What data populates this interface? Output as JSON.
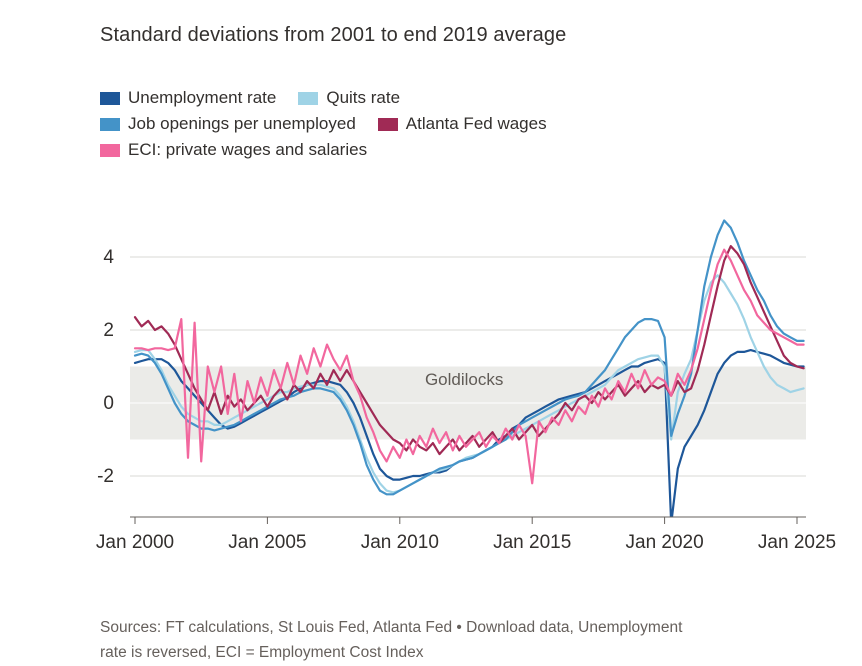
{
  "title": "Standard deviations from 2001 to end 2019 average",
  "legend": {
    "items": [
      {
        "label": "Unemployment rate",
        "color": "#1e5799"
      },
      {
        "label": "Quits rate",
        "color": "#9fd3e6"
      },
      {
        "label": "Job openings per unemployed",
        "color": "#4493c8"
      },
      {
        "label": "Atlanta Fed wages",
        "color": "#a02a55"
      },
      {
        "label": "ECI: private wages and salaries",
        "color": "#f2679e"
      }
    ]
  },
  "source": {
    "line1": "Sources: FT calculations, St Louis Fed, Atlanta Fed • Download data, Unemployment",
    "line2": "rate is reversed, ECI = Employment Cost Index"
  },
  "chart_data": {
    "type": "line",
    "title": "Standard deviations from 2001 to end 2019 average",
    "xlabel": "",
    "ylabel": "Standard deviations",
    "x_start": 2000.0,
    "x_step": 0.25,
    "xlim": [
      2000,
      2025.5
    ],
    "ylim": [
      -3.1,
      5.4
    ],
    "y_ticks": [
      -2,
      0,
      2,
      4
    ],
    "x_ticks": [
      {
        "value": 2000,
        "label": "Jan 2000"
      },
      {
        "value": 2005,
        "label": "Jan 2005"
      },
      {
        "value": 2010,
        "label": "Jan 2010"
      },
      {
        "value": 2015,
        "label": "Jan 2015"
      },
      {
        "value": 2020,
        "label": "Jan 2020"
      },
      {
        "value": 2025,
        "label": "Jan 2025"
      }
    ],
    "band": {
      "from": -1,
      "to": 1
    },
    "annotation": {
      "label": "Goldilocks",
      "x": 2010.95,
      "y": 0.5
    },
    "series": [
      {
        "name": "unemployment-rate",
        "color": "#1e5799",
        "values": [
          1.1,
          1.15,
          1.2,
          1.2,
          1.2,
          1.1,
          0.9,
          0.6,
          0.4,
          0.2,
          0.0,
          -0.2,
          -0.4,
          -0.6,
          -0.7,
          -0.65,
          -0.55,
          -0.45,
          -0.35,
          -0.25,
          -0.15,
          -0.05,
          0.05,
          0.15,
          0.3,
          0.4,
          0.5,
          0.55,
          0.6,
          0.6,
          0.55,
          0.5,
          0.3,
          0.0,
          -0.4,
          -0.9,
          -1.4,
          -1.8,
          -2.0,
          -2.1,
          -2.1,
          -2.05,
          -2.0,
          -2.0,
          -1.95,
          -1.9,
          -1.9,
          -1.85,
          -1.7,
          -1.6,
          -1.55,
          -1.5,
          -1.4,
          -1.3,
          -1.2,
          -1.0,
          -0.9,
          -0.7,
          -0.6,
          -0.4,
          -0.3,
          -0.2,
          -0.1,
          0.0,
          0.1,
          0.15,
          0.2,
          0.25,
          0.3,
          0.4,
          0.5,
          0.6,
          0.7,
          0.8,
          0.9,
          1.0,
          1.0,
          1.1,
          1.15,
          1.2,
          1.1,
          -3.3,
          -1.8,
          -1.2,
          -0.9,
          -0.6,
          -0.2,
          0.3,
          0.8,
          1.1,
          1.3,
          1.4,
          1.4,
          1.45,
          1.4,
          1.35,
          1.3,
          1.2,
          1.1,
          1.05,
          1.0,
          1.0
        ]
      },
      {
        "name": "quits-rate",
        "color": "#9fd3e6",
        "values": [
          1.4,
          1.45,
          1.45,
          1.2,
          0.9,
          0.5,
          0.2,
          -0.1,
          -0.3,
          -0.4,
          -0.5,
          -0.5,
          -0.6,
          -0.6,
          -0.5,
          -0.4,
          -0.3,
          -0.2,
          -0.1,
          0.0,
          0.1,
          0.2,
          0.3,
          0.3,
          0.4,
          0.45,
          0.5,
          0.5,
          0.5,
          0.45,
          0.4,
          0.2,
          -0.1,
          -0.5,
          -1.0,
          -1.5,
          -1.9,
          -2.2,
          -2.4,
          -2.45,
          -2.4,
          -2.3,
          -2.2,
          -2.1,
          -2.0,
          -1.9,
          -1.85,
          -1.8,
          -1.7,
          -1.6,
          -1.5,
          -1.45,
          -1.4,
          -1.3,
          -1.2,
          -1.1,
          -1.0,
          -0.9,
          -0.8,
          -0.7,
          -0.6,
          -0.5,
          -0.4,
          -0.3,
          -0.2,
          -0.1,
          0.0,
          0.1,
          0.2,
          0.3,
          0.4,
          0.5,
          0.7,
          0.9,
          1.0,
          1.1,
          1.2,
          1.25,
          1.3,
          1.3,
          1.0,
          -1.0,
          0.3,
          0.8,
          1.2,
          2.0,
          2.8,
          3.3,
          3.5,
          3.3,
          3.0,
          2.7,
          2.3,
          1.8,
          1.4,
          1.0,
          0.7,
          0.5,
          0.4,
          0.3,
          0.35,
          0.4
        ]
      },
      {
        "name": "job-openings-per-unemployed",
        "color": "#4493c8",
        "values": [
          1.3,
          1.35,
          1.3,
          1.1,
          0.8,
          0.4,
          0.0,
          -0.3,
          -0.5,
          -0.6,
          -0.7,
          -0.7,
          -0.75,
          -0.7,
          -0.65,
          -0.6,
          -0.5,
          -0.4,
          -0.3,
          -0.2,
          -0.1,
          0.0,
          0.1,
          0.15,
          0.2,
          0.3,
          0.35,
          0.4,
          0.4,
          0.35,
          0.3,
          0.1,
          -0.2,
          -0.6,
          -1.1,
          -1.7,
          -2.1,
          -2.4,
          -2.5,
          -2.5,
          -2.4,
          -2.3,
          -2.2,
          -2.1,
          -2.0,
          -1.9,
          -1.8,
          -1.75,
          -1.7,
          -1.6,
          -1.55,
          -1.5,
          -1.4,
          -1.3,
          -1.2,
          -1.1,
          -1.0,
          -0.8,
          -0.6,
          -0.5,
          -0.4,
          -0.3,
          -0.2,
          -0.1,
          0.0,
          0.1,
          0.15,
          0.2,
          0.3,
          0.5,
          0.7,
          0.9,
          1.2,
          1.5,
          1.8,
          2.0,
          2.2,
          2.3,
          2.3,
          2.25,
          1.8,
          -0.9,
          -0.3,
          0.2,
          0.8,
          2.0,
          3.2,
          4.0,
          4.6,
          5.0,
          4.8,
          4.4,
          3.9,
          3.5,
          3.1,
          2.8,
          2.4,
          2.1,
          1.9,
          1.8,
          1.7,
          1.7
        ]
      },
      {
        "name": "atlanta-fed-wages",
        "color": "#a02a55",
        "values": [
          2.35,
          2.1,
          2.25,
          2.0,
          2.1,
          1.9,
          1.6,
          1.2,
          0.8,
          0.4,
          0.1,
          -0.2,
          0.3,
          -0.3,
          0.2,
          -0.1,
          0.1,
          -0.2,
          0.0,
          0.2,
          -0.1,
          0.2,
          0.4,
          0.1,
          0.5,
          0.3,
          0.6,
          0.4,
          0.8,
          0.5,
          0.9,
          0.6,
          0.9,
          0.6,
          0.3,
          0.0,
          -0.3,
          -0.6,
          -0.8,
          -1.0,
          -1.1,
          -1.3,
          -1.0,
          -1.2,
          -1.3,
          -1.1,
          -1.4,
          -1.2,
          -1.0,
          -1.3,
          -1.1,
          -0.9,
          -1.2,
          -1.0,
          -0.8,
          -1.1,
          -0.9,
          -0.7,
          -1.0,
          -0.8,
          -0.6,
          -0.9,
          -0.7,
          -0.5,
          -0.3,
          0.0,
          -0.2,
          0.1,
          0.2,
          0.0,
          0.3,
          0.1,
          0.3,
          0.5,
          0.2,
          0.4,
          0.6,
          0.3,
          0.5,
          0.4,
          0.5,
          0.2,
          0.6,
          0.3,
          0.4,
          0.9,
          1.6,
          2.4,
          3.2,
          3.9,
          4.3,
          4.1,
          3.8,
          3.3,
          2.9,
          2.5,
          2.1,
          1.7,
          1.3,
          1.1,
          1.0,
          0.95
        ]
      },
      {
        "name": "eci-private-wages-and-salaries",
        "color": "#f2679e",
        "values": [
          1.5,
          1.5,
          1.45,
          1.5,
          1.5,
          1.45,
          1.5,
          2.3,
          -1.5,
          2.2,
          -1.6,
          1.0,
          0.3,
          1.0,
          -0.3,
          0.8,
          -0.5,
          0.6,
          0.0,
          0.7,
          0.2,
          0.9,
          0.4,
          1.1,
          0.5,
          1.3,
          0.8,
          1.5,
          1.0,
          1.6,
          1.2,
          0.9,
          1.3,
          0.6,
          0.2,
          -0.4,
          -0.8,
          -1.3,
          -1.6,
          -1.2,
          -1.5,
          -1.0,
          -1.4,
          -0.9,
          -1.2,
          -0.7,
          -1.1,
          -0.8,
          -1.3,
          -0.9,
          -1.2,
          -1.0,
          -0.8,
          -1.2,
          -0.9,
          -1.1,
          -0.7,
          -1.0,
          -0.6,
          -0.9,
          -2.2,
          -0.5,
          -0.8,
          -0.4,
          -0.6,
          -0.2,
          -0.5,
          -0.1,
          -0.3,
          0.2,
          -0.1,
          0.4,
          0.1,
          0.6,
          0.3,
          0.8,
          0.4,
          0.9,
          0.5,
          0.7,
          0.6,
          0.2,
          0.8,
          0.5,
          0.9,
          1.5,
          2.3,
          3.1,
          3.8,
          4.2,
          3.9,
          3.5,
          3.1,
          2.8,
          2.4,
          2.2,
          2.0,
          1.9,
          1.8,
          1.7,
          1.6,
          1.6
        ]
      }
    ]
  }
}
